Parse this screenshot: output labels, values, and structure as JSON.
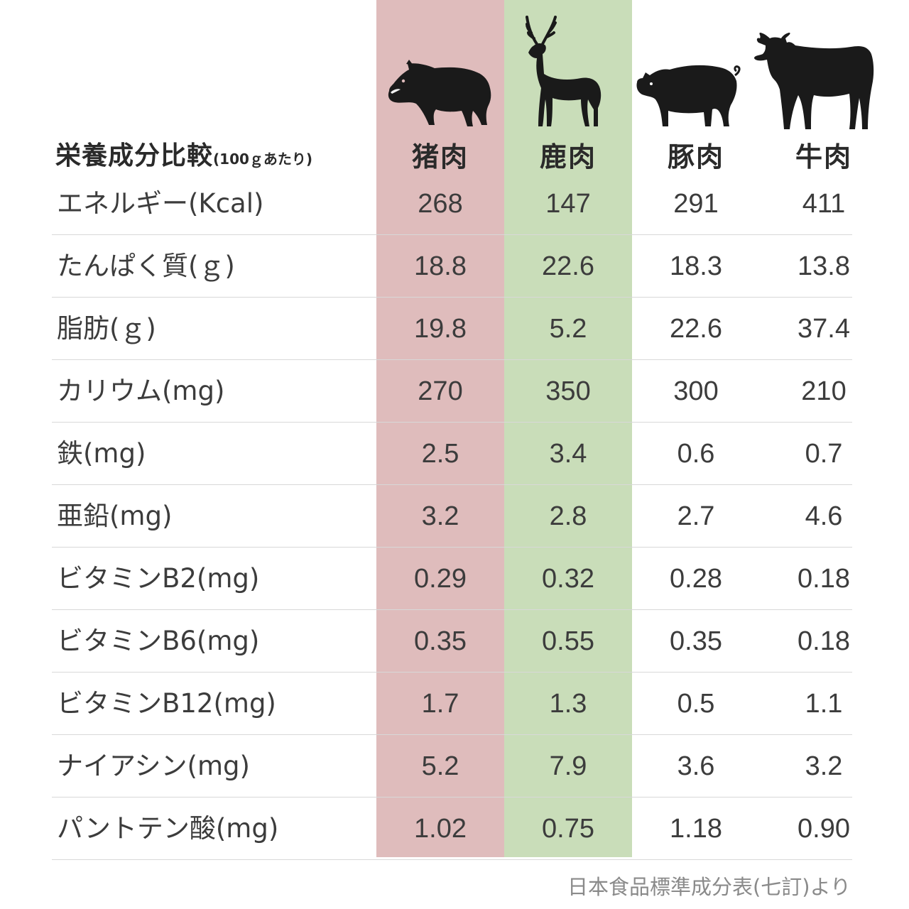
{
  "chart_data": {
    "type": "table",
    "title": "栄養成分比較",
    "title_note": "(100ｇあたり)",
    "columns": [
      {
        "name": "猪肉",
        "icon": "boar-icon",
        "highlight": "#dfbcbc"
      },
      {
        "name": "鹿肉",
        "icon": "deer-icon",
        "highlight": "#c9ddb9"
      },
      {
        "name": "豚肉",
        "icon": "pig-icon",
        "highlight": ""
      },
      {
        "name": "牛肉",
        "icon": "cow-icon",
        "highlight": ""
      }
    ],
    "rows": [
      {
        "label": "エネルギー(Kcal)",
        "values": [
          "268",
          "147",
          "291",
          "411"
        ]
      },
      {
        "label": "たんぱく質(ｇ)",
        "values": [
          "18.8",
          "22.6",
          "18.3",
          "13.8"
        ]
      },
      {
        "label": "脂肪(ｇ)",
        "values": [
          "19.8",
          "5.2",
          "22.6",
          "37.4"
        ]
      },
      {
        "label": "カリウム(mg)",
        "values": [
          "270",
          "350",
          "300",
          "210"
        ]
      },
      {
        "label": "鉄(mg)",
        "values": [
          "2.5",
          "3.4",
          "0.6",
          "0.7"
        ]
      },
      {
        "label": "亜鉛(mg)",
        "values": [
          "3.2",
          "2.8",
          "2.7",
          "4.6"
        ]
      },
      {
        "label": "ビタミンB2(mg)",
        "values": [
          "0.29",
          "0.32",
          "0.28",
          "0.18"
        ]
      },
      {
        "label": "ビタミンB6(mg)",
        "values": [
          "0.35",
          "0.55",
          "0.35",
          "0.18"
        ]
      },
      {
        "label": "ビタミンB12(mg)",
        "values": [
          "1.7",
          "1.3",
          "0.5",
          "1.1"
        ]
      },
      {
        "label": "ナイアシン(mg)",
        "values": [
          "5.2",
          "7.9",
          "3.6",
          "3.2"
        ]
      },
      {
        "label": "パントテン酸(mg)",
        "values": [
          "1.02",
          "0.75",
          "1.18",
          "0.90"
        ]
      }
    ],
    "source": "日本食品標準成分表(七訂)より"
  }
}
